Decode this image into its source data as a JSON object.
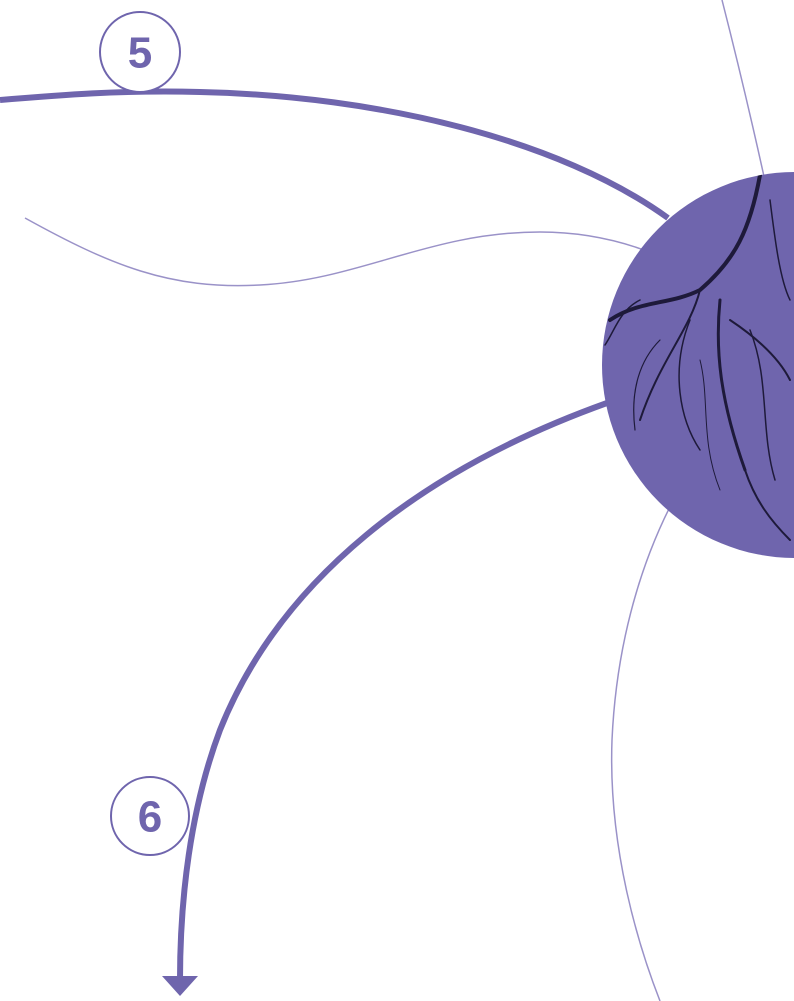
{
  "markers": [
    {
      "label": "5"
    },
    {
      "label": "6"
    }
  ]
}
